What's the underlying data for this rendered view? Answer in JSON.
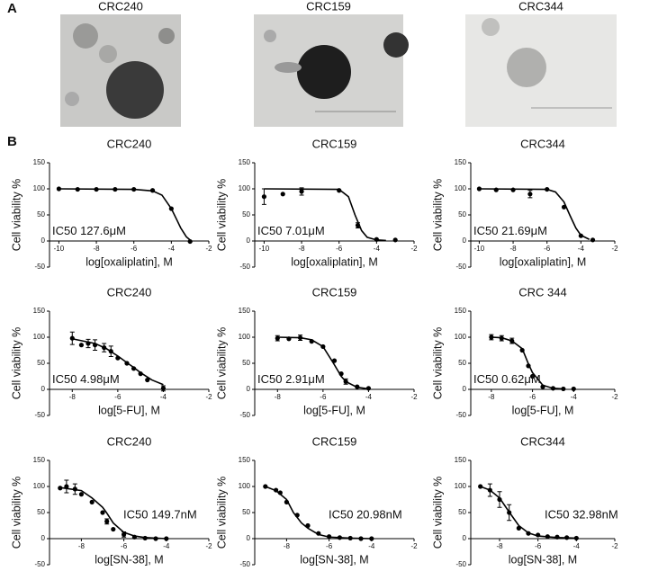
{
  "panel_labels": [
    "A",
    "B"
  ],
  "images": [
    {
      "title": "CRC240"
    },
    {
      "title": "CRC159"
    },
    {
      "title": "CRC344"
    }
  ],
  "chart_data": [
    {
      "type": "scatter",
      "title": "CRC240",
      "ylabel": "Cell viability %",
      "xlabel": "log[oxaliplatin], M",
      "annotation": "IC50 127.6μM",
      "xlim": [
        -10.5,
        -2
      ],
      "xticks": [
        -10,
        -8,
        -6,
        -4,
        -2
      ],
      "ylim": [
        -50,
        150
      ],
      "yticks": [
        -50,
        0,
        50,
        100,
        150
      ],
      "series": [
        {
          "color": "#000000",
          "x": [
            -10,
            -9,
            -8,
            -7,
            -6,
            -5,
            -4,
            -3
          ],
          "values": [
            100,
            99,
            99,
            99,
            99,
            97,
            62,
            -1
          ]
        },
        {
          "type": "line",
          "color": "#000000",
          "x": [
            -10,
            -6,
            -5,
            -4.5,
            -4,
            -3.7,
            -3.5,
            -3.2,
            -3
          ],
          "values": [
            100,
            99,
            96,
            88,
            62,
            40,
            25,
            8,
            2
          ]
        }
      ]
    },
    {
      "type": "scatter",
      "title": "CRC159",
      "ylabel": "Cell viability %",
      "xlabel": "log[oxaliplatin], M",
      "annotation": "IC50 7.01μM",
      "xlim": [
        -10.5,
        -2
      ],
      "xticks": [
        -10,
        -8,
        -6,
        -4,
        -2
      ],
      "ylim": [
        -50,
        150
      ],
      "yticks": [
        -50,
        0,
        50,
        100,
        150
      ],
      "series": [
        {
          "color": "#000000",
          "x": [
            -10,
            -9,
            -8,
            -6,
            -5,
            -4,
            -3
          ],
          "values": [
            85,
            90,
            95,
            97,
            30,
            3,
            2
          ],
          "errors": [
            15,
            null,
            7,
            null,
            5,
            null,
            null
          ]
        },
        {
          "type": "line",
          "color": "#000000",
          "x": [
            -10,
            -6,
            -5.5,
            -5.15,
            -4.8,
            -4.5,
            -4,
            -3.5
          ],
          "values": [
            100,
            99,
            85,
            50,
            20,
            7,
            2,
            1
          ]
        }
      ]
    },
    {
      "type": "scatter",
      "title": "CRC344",
      "ylabel": "Cell viability %",
      "xlabel": "log[oxaliplatin], M",
      "annotation": "IC50 21.69μM",
      "xlim": [
        -10.5,
        -2
      ],
      "xticks": [
        -10,
        -8,
        -6,
        -4,
        -2
      ],
      "ylim": [
        -50,
        150
      ],
      "yticks": [
        -50,
        0,
        50,
        100,
        150
      ],
      "series": [
        {
          "color": "#000000",
          "x": [
            -10,
            -9,
            -8,
            -7,
            -6,
            -5,
            -4,
            -3.3
          ],
          "values": [
            100,
            98,
            98,
            90,
            99,
            65,
            10,
            2
          ],
          "errors": [
            null,
            null,
            null,
            7,
            null,
            null,
            null,
            null
          ]
        },
        {
          "type": "line",
          "color": "#000000",
          "x": [
            -10,
            -6,
            -5.5,
            -5,
            -4.66,
            -4.3,
            -4,
            -3.5
          ],
          "values": [
            100,
            99,
            94,
            75,
            50,
            25,
            11,
            3
          ]
        }
      ]
    },
    {
      "type": "scatter",
      "title": "CRC240",
      "ylabel": "Cell viability %",
      "xlabel": "log[5-FU], M",
      "annotation": "IC50 4.98μM",
      "xlim": [
        -9,
        -2
      ],
      "xticks": [
        -8,
        -6,
        -4,
        -2
      ],
      "ylim": [
        -50,
        150
      ],
      "yticks": [
        -50,
        0,
        50,
        100,
        150
      ],
      "series": [
        {
          "color": "#000000",
          "x": [
            -8,
            -7.6,
            -7.3,
            -7,
            -6.6,
            -6.3,
            -6,
            -5.6,
            -5.3,
            -5,
            -4.7,
            -4
          ],
          "values": [
            98,
            85,
            88,
            85,
            80,
            73,
            60,
            50,
            40,
            30,
            18,
            2
          ],
          "errors": [
            12,
            null,
            8,
            10,
            8,
            10,
            null,
            null,
            null,
            null,
            null,
            5
          ]
        },
        {
          "type": "line",
          "color": "#000000",
          "x": [
            -8,
            -7,
            -6.5,
            -6,
            -5.5,
            -5.3,
            -5,
            -4.5,
            -4
          ],
          "values": [
            97,
            88,
            78,
            64,
            48,
            42,
            32,
            18,
            9
          ]
        }
      ]
    },
    {
      "type": "scatter",
      "title": "CRC159",
      "ylabel": "Cell viability %",
      "xlabel": "log[5-FU], M",
      "annotation": "IC50 2.91μM",
      "xlim": [
        -9,
        -2
      ],
      "xticks": [
        -8,
        -6,
        -4,
        -2
      ],
      "ylim": [
        -50,
        150
      ],
      "yticks": [
        -50,
        0,
        50,
        100,
        150
      ],
      "series": [
        {
          "color": "#000000",
          "x": [
            -8,
            -7.5,
            -7,
            -6.5,
            -6,
            -5.5,
            -5.2,
            -5,
            -4.5,
            -4
          ],
          "values": [
            98,
            97,
            99,
            92,
            82,
            55,
            30,
            15,
            5,
            2
          ],
          "errors": [
            5,
            null,
            5,
            null,
            null,
            null,
            null,
            5,
            null,
            null
          ]
        },
        {
          "type": "line",
          "color": "#000000",
          "x": [
            -8,
            -7,
            -6.5,
            -6,
            -5.54,
            -5.2,
            -5,
            -4.5,
            -4
          ],
          "values": [
            100,
            99,
            95,
            82,
            50,
            25,
            15,
            4,
            1
          ]
        }
      ]
    },
    {
      "type": "scatter",
      "title": "CRC 344",
      "ylabel": "Cell viability %",
      "xlabel": "log[5-FU], M",
      "annotation": "IC50 0.62μM",
      "xlim": [
        -9,
        -2
      ],
      "xticks": [
        -8,
        -6,
        -4,
        -2
      ],
      "ylim": [
        -50,
        150
      ],
      "yticks": [
        -50,
        0,
        50,
        100,
        150
      ],
      "series": [
        {
          "color": "#000000",
          "x": [
            -8,
            -7.5,
            -7,
            -6.5,
            -6.2,
            -6,
            -5.5,
            -5,
            -4.5,
            -4
          ],
          "values": [
            100,
            98,
            93,
            75,
            45,
            25,
            5,
            2,
            1,
            1
          ],
          "errors": [
            5,
            5,
            5,
            null,
            null,
            null,
            null,
            null,
            null,
            null
          ]
        },
        {
          "type": "line",
          "color": "#000000",
          "x": [
            -8,
            -7.5,
            -7,
            -6.5,
            -6.21,
            -6,
            -5.5,
            -5,
            -4.5
          ],
          "values": [
            100,
            99,
            93,
            78,
            50,
            32,
            8,
            2,
            1
          ]
        }
      ]
    },
    {
      "type": "scatter",
      "title": "CRC240",
      "ylabel": "Cell viability %",
      "xlabel": "log[SN-38], M",
      "annotation": "IC50 149.7nM",
      "xlim": [
        -9.5,
        -2
      ],
      "xticks": [
        -8,
        -6,
        -4,
        -2
      ],
      "ylim": [
        -50,
        150
      ],
      "yticks": [
        -50,
        0,
        50,
        100,
        150
      ],
      "series": [
        {
          "color": "#000000",
          "x": [
            -9,
            -8.7,
            -8.3,
            -8,
            -7.5,
            -7,
            -6.8,
            -6.5,
            -6,
            -5.5,
            -5,
            -4.5,
            -4
          ],
          "values": [
            97,
            100,
            95,
            85,
            70,
            50,
            33,
            18,
            8,
            3,
            1,
            0,
            0
          ],
          "errors": [
            null,
            12,
            10,
            null,
            null,
            null,
            5,
            null,
            5,
            null,
            null,
            null,
            null
          ]
        },
        {
          "type": "line",
          "color": "#000000",
          "x": [
            -9,
            -8,
            -7.5,
            -7,
            -6.82,
            -6.5,
            -6,
            -5.5,
            -5,
            -4
          ],
          "values": [
            98,
            92,
            78,
            60,
            50,
            30,
            12,
            5,
            2,
            0
          ]
        }
      ]
    },
    {
      "type": "scatter",
      "title": "CRC159",
      "ylabel": "Cell viability %",
      "xlabel": "log[SN-38], M",
      "annotation": "IC50 20.98nM",
      "xlim": [
        -9.5,
        -2
      ],
      "xticks": [
        -8,
        -6,
        -4,
        -2
      ],
      "ylim": [
        -50,
        150
      ],
      "yticks": [
        -50,
        0,
        50,
        100,
        150
      ],
      "series": [
        {
          "color": "#000000",
          "x": [
            -9,
            -8.5,
            -8.3,
            -8,
            -7.5,
            -7,
            -6.5,
            -6,
            -5.5,
            -5,
            -4.5,
            -4
          ],
          "values": [
            100,
            93,
            88,
            70,
            45,
            25,
            10,
            4,
            2,
            1,
            0,
            0
          ]
        },
        {
          "type": "line",
          "color": "#000000",
          "x": [
            -9,
            -8.5,
            -8,
            -7.68,
            -7.3,
            -7,
            -6.5,
            -6,
            -5,
            -4
          ],
          "values": [
            100,
            92,
            75,
            50,
            30,
            20,
            8,
            3,
            1,
            0
          ]
        }
      ]
    },
    {
      "type": "scatter",
      "title": "CRC344",
      "ylabel": "Cell viability %",
      "xlabel": "log[SN-38], M",
      "annotation": "IC50 32.98nM",
      "xlim": [
        -9.5,
        -2
      ],
      "xticks": [
        -8,
        -6,
        -4,
        -2
      ],
      "ylim": [
        -50,
        150
      ],
      "yticks": [
        -50,
        0,
        50,
        100,
        150
      ],
      "series": [
        {
          "color": "#000000",
          "x": [
            -9,
            -8.5,
            -8,
            -7.5,
            -7,
            -6.5,
            -6,
            -5.5,
            -5,
            -4.5,
            -4
          ],
          "values": [
            100,
            93,
            75,
            50,
            20,
            10,
            7,
            4,
            3,
            2,
            1
          ],
          "errors": [
            null,
            12,
            15,
            15,
            null,
            null,
            null,
            null,
            null,
            null,
            null
          ]
        },
        {
          "type": "line",
          "color": "#000000",
          "x": [
            -9,
            -8.5,
            -8,
            -7.48,
            -7,
            -6.5,
            -6,
            -5,
            -4
          ],
          "values": [
            100,
            93,
            78,
            50,
            25,
            11,
            5,
            2,
            1
          ]
        }
      ]
    }
  ]
}
